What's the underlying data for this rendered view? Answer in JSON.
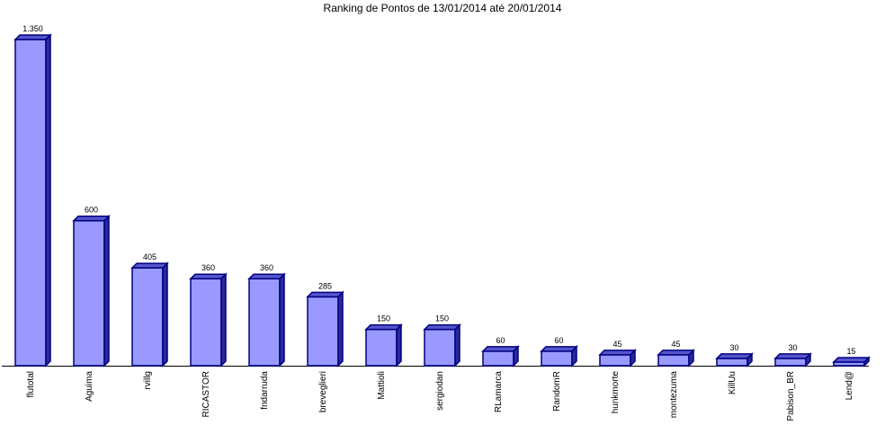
{
  "chart_data": {
    "type": "bar",
    "title": "Ranking de Pontos de 13/01/2014 até 20/01/2014",
    "categories": [
      "flutotal",
      "Aguima",
      "rvillg",
      "RICASTOR",
      "fndarruda",
      "brevеglieri",
      "Mattioli",
      "sergiodan",
      "RLamarca",
      "RandomR",
      "hunkmorte",
      "montezuma",
      "KillUu",
      "Pabison_BR",
      "Lend@"
    ],
    "values": [
      1350,
      600,
      405,
      360,
      360,
      285,
      150,
      150,
      60,
      60,
      45,
      45,
      30,
      30,
      15
    ],
    "value_labels": [
      "1.350",
      "600",
      "405",
      "360",
      "360",
      "285",
      "150",
      "150",
      "60",
      "60",
      "45",
      "45",
      "30",
      "30",
      "15"
    ],
    "color": "#9999ff"
  }
}
